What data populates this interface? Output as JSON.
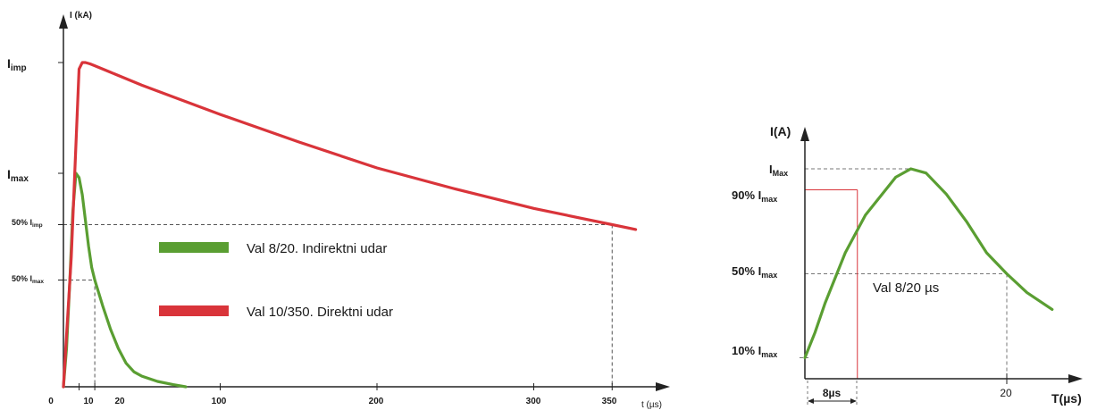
{
  "chart_data": [
    {
      "type": "line",
      "ylabel": "I (kA)",
      "xlabel": "t (µs)",
      "x_ticks": [
        "0",
        "10",
        "20",
        "100",
        "200",
        "300",
        "350"
      ],
      "y_labels": {
        "imp": {
          "main": "I",
          "sub": "imp"
        },
        "max": {
          "main": "I",
          "sub": "max"
        },
        "half_imp": {
          "main": "50% I",
          "sub": "imp"
        },
        "half_max": {
          "main": "50% I",
          "sub": "max"
        }
      },
      "legend": [
        {
          "label": "Val 8/20. Indirektni udar",
          "color": "#5a9e32"
        },
        {
          "label": "Val 10/350. Direktni udar",
          "color": "#d9343a"
        }
      ],
      "series": [
        {
          "name": "Val 8/20. Indirektni udar",
          "color": "#5a9e32",
          "x": [
            0,
            2,
            4,
            6,
            8,
            10,
            12,
            14,
            16,
            18,
            20,
            25,
            30,
            35,
            40,
            45,
            50,
            60,
            70,
            78
          ],
          "y": [
            0,
            0.18,
            0.48,
            0.82,
            1.0,
            0.98,
            0.9,
            0.78,
            0.66,
            0.56,
            0.5,
            0.38,
            0.27,
            0.18,
            0.11,
            0.07,
            0.05,
            0.025,
            0.01,
            0.0
          ]
        },
        {
          "name": "Val 10/350. Direktni udar",
          "color": "#d9343a",
          "x": [
            0,
            5,
            10,
            12,
            14,
            17,
            20,
            30,
            50,
            75,
            100,
            150,
            200,
            250,
            300,
            350,
            365
          ],
          "y": [
            0,
            0.4,
            0.98,
            1.0,
            1.0,
            0.996,
            0.99,
            0.97,
            0.93,
            0.885,
            0.84,
            0.755,
            0.675,
            0.61,
            0.55,
            0.5,
            0.485
          ]
        }
      ]
    },
    {
      "type": "line",
      "ylabel": "I(A)",
      "xlabel": "T(µs)",
      "x_ticks": [
        "20"
      ],
      "time_annotation": "8µs",
      "curve_label": "Val 8/20 µs",
      "y_labels": {
        "max": {
          "main": "I",
          "sub": "Max"
        },
        "p90": {
          "main": "90% I",
          "sub": "max"
        },
        "p50": {
          "main": "50% I",
          "sub": "max"
        },
        "p10": {
          "main": "10% I",
          "sub": "max"
        }
      },
      "series": [
        {
          "color": "#5a9e32",
          "x": [
            0,
            1,
            2,
            4,
            6,
            8,
            9,
            10.5,
            12,
            14,
            16,
            18,
            20,
            22,
            24.5
          ],
          "y": [
            0.1,
            0.22,
            0.36,
            0.6,
            0.78,
            0.9,
            0.96,
            1.0,
            0.98,
            0.88,
            0.75,
            0.6,
            0.5,
            0.41,
            0.33
          ]
        }
      ]
    }
  ]
}
